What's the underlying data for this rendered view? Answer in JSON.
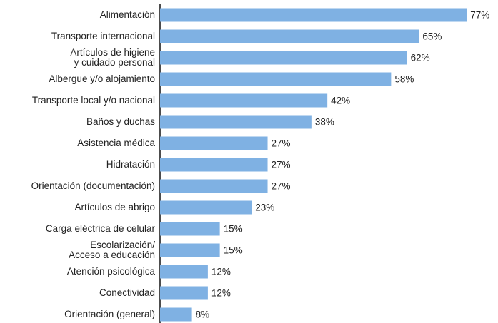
{
  "chart_data": {
    "type": "bar",
    "orientation": "horizontal",
    "categories": [
      "Alimentación",
      "Transporte internacional",
      "Artículos de higiene\ny cuidado personal",
      "Albergue y/o alojamiento",
      "Transporte local y/o nacional",
      "Baños y duchas",
      "Asistencia médica",
      "Hidratación",
      "Orientación (documentación)",
      "Artículos de abrigo",
      "Carga eléctrica de celular",
      "Escolarización/\nAcceso a educación",
      "Atención psicológica",
      "Conectividad",
      "Orientación (general)"
    ],
    "values": [
      77,
      65,
      62,
      58,
      42,
      38,
      27,
      27,
      27,
      23,
      15,
      15,
      12,
      12,
      8
    ],
    "value_labels": [
      "77%",
      "65%",
      "62%",
      "58%",
      "42%",
      "38%",
      "27%",
      "27%",
      "27%",
      "23%",
      "15%",
      "15%",
      "12%",
      "12%",
      "8%"
    ],
    "color": "#7fb1e3",
    "xlim": [
      0,
      80
    ]
  }
}
